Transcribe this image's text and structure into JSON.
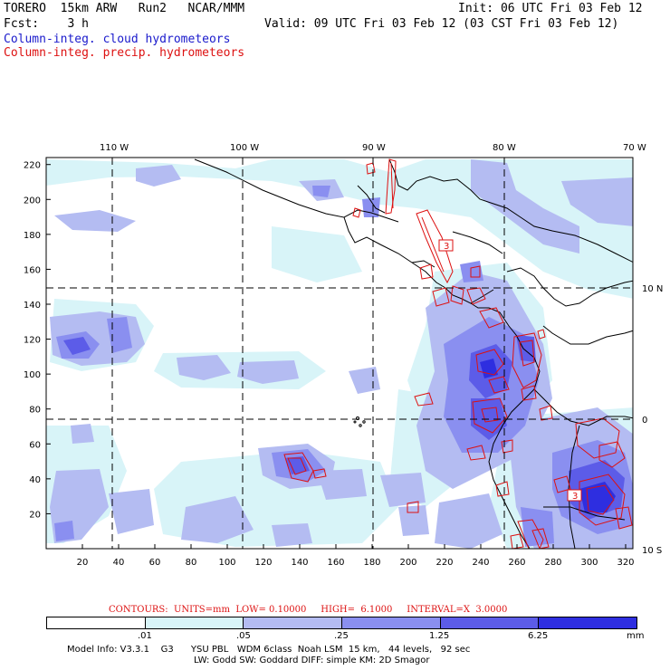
{
  "header": {
    "model": "TORERO  15km ARW   Run2   NCAR/MMM",
    "init": "Init: 06 UTC Fri 03 Feb 12",
    "fcst": "Fcst:    3 h",
    "valid": "Valid: 09 UTC Fri 03 Feb 12 (03 CST Fri 03 Feb 12)",
    "field1": "Column-integ. cloud hydrometeors",
    "field2": "Column-integ. precip. hydrometeors"
  },
  "map": {
    "top_lon_labels": [
      "110 W",
      "100 W",
      "90 W",
      "80 W",
      "70 W"
    ],
    "right_lat_labels": [
      "10 N",
      "0",
      "10 S"
    ],
    "x_ticks": [
      "20",
      "40",
      "60",
      "80",
      "100",
      "120",
      "140",
      "160",
      "180",
      "200",
      "220",
      "240",
      "260",
      "280",
      "300",
      "320"
    ],
    "y_ticks": [
      "220",
      "200",
      "180",
      "160",
      "140",
      "120",
      "100",
      "80",
      "60",
      "40",
      "20"
    ],
    "contour_labels": [
      "3",
      "3"
    ]
  },
  "colors": {
    "level1": "#d8f4f8",
    "level2": "#b4bcf2",
    "level3": "#8a8ff0",
    "level4": "#5c5ce8",
    "level5": "#2e2ee0",
    "contour": "#dd1111"
  },
  "contours_info": "CONTOURS:  UNITS=mm  LOW= 0.10000     HIGH=  6.1000     INTERVAL=X  3.0000",
  "colorbar": {
    "labels": [
      ".01",
      ".05",
      ".25",
      "1.25",
      "6.25"
    ],
    "unit": "mm"
  },
  "footer": {
    "line1": "Model Info: V3.3.1    G3      YSU PBL   WDM 6class  Noah LSM  15 km,   44 levels,   92 sec",
    "line2": "LW: Godd SW: Goddard DIFF: simple KM: 2D Smagor"
  }
}
